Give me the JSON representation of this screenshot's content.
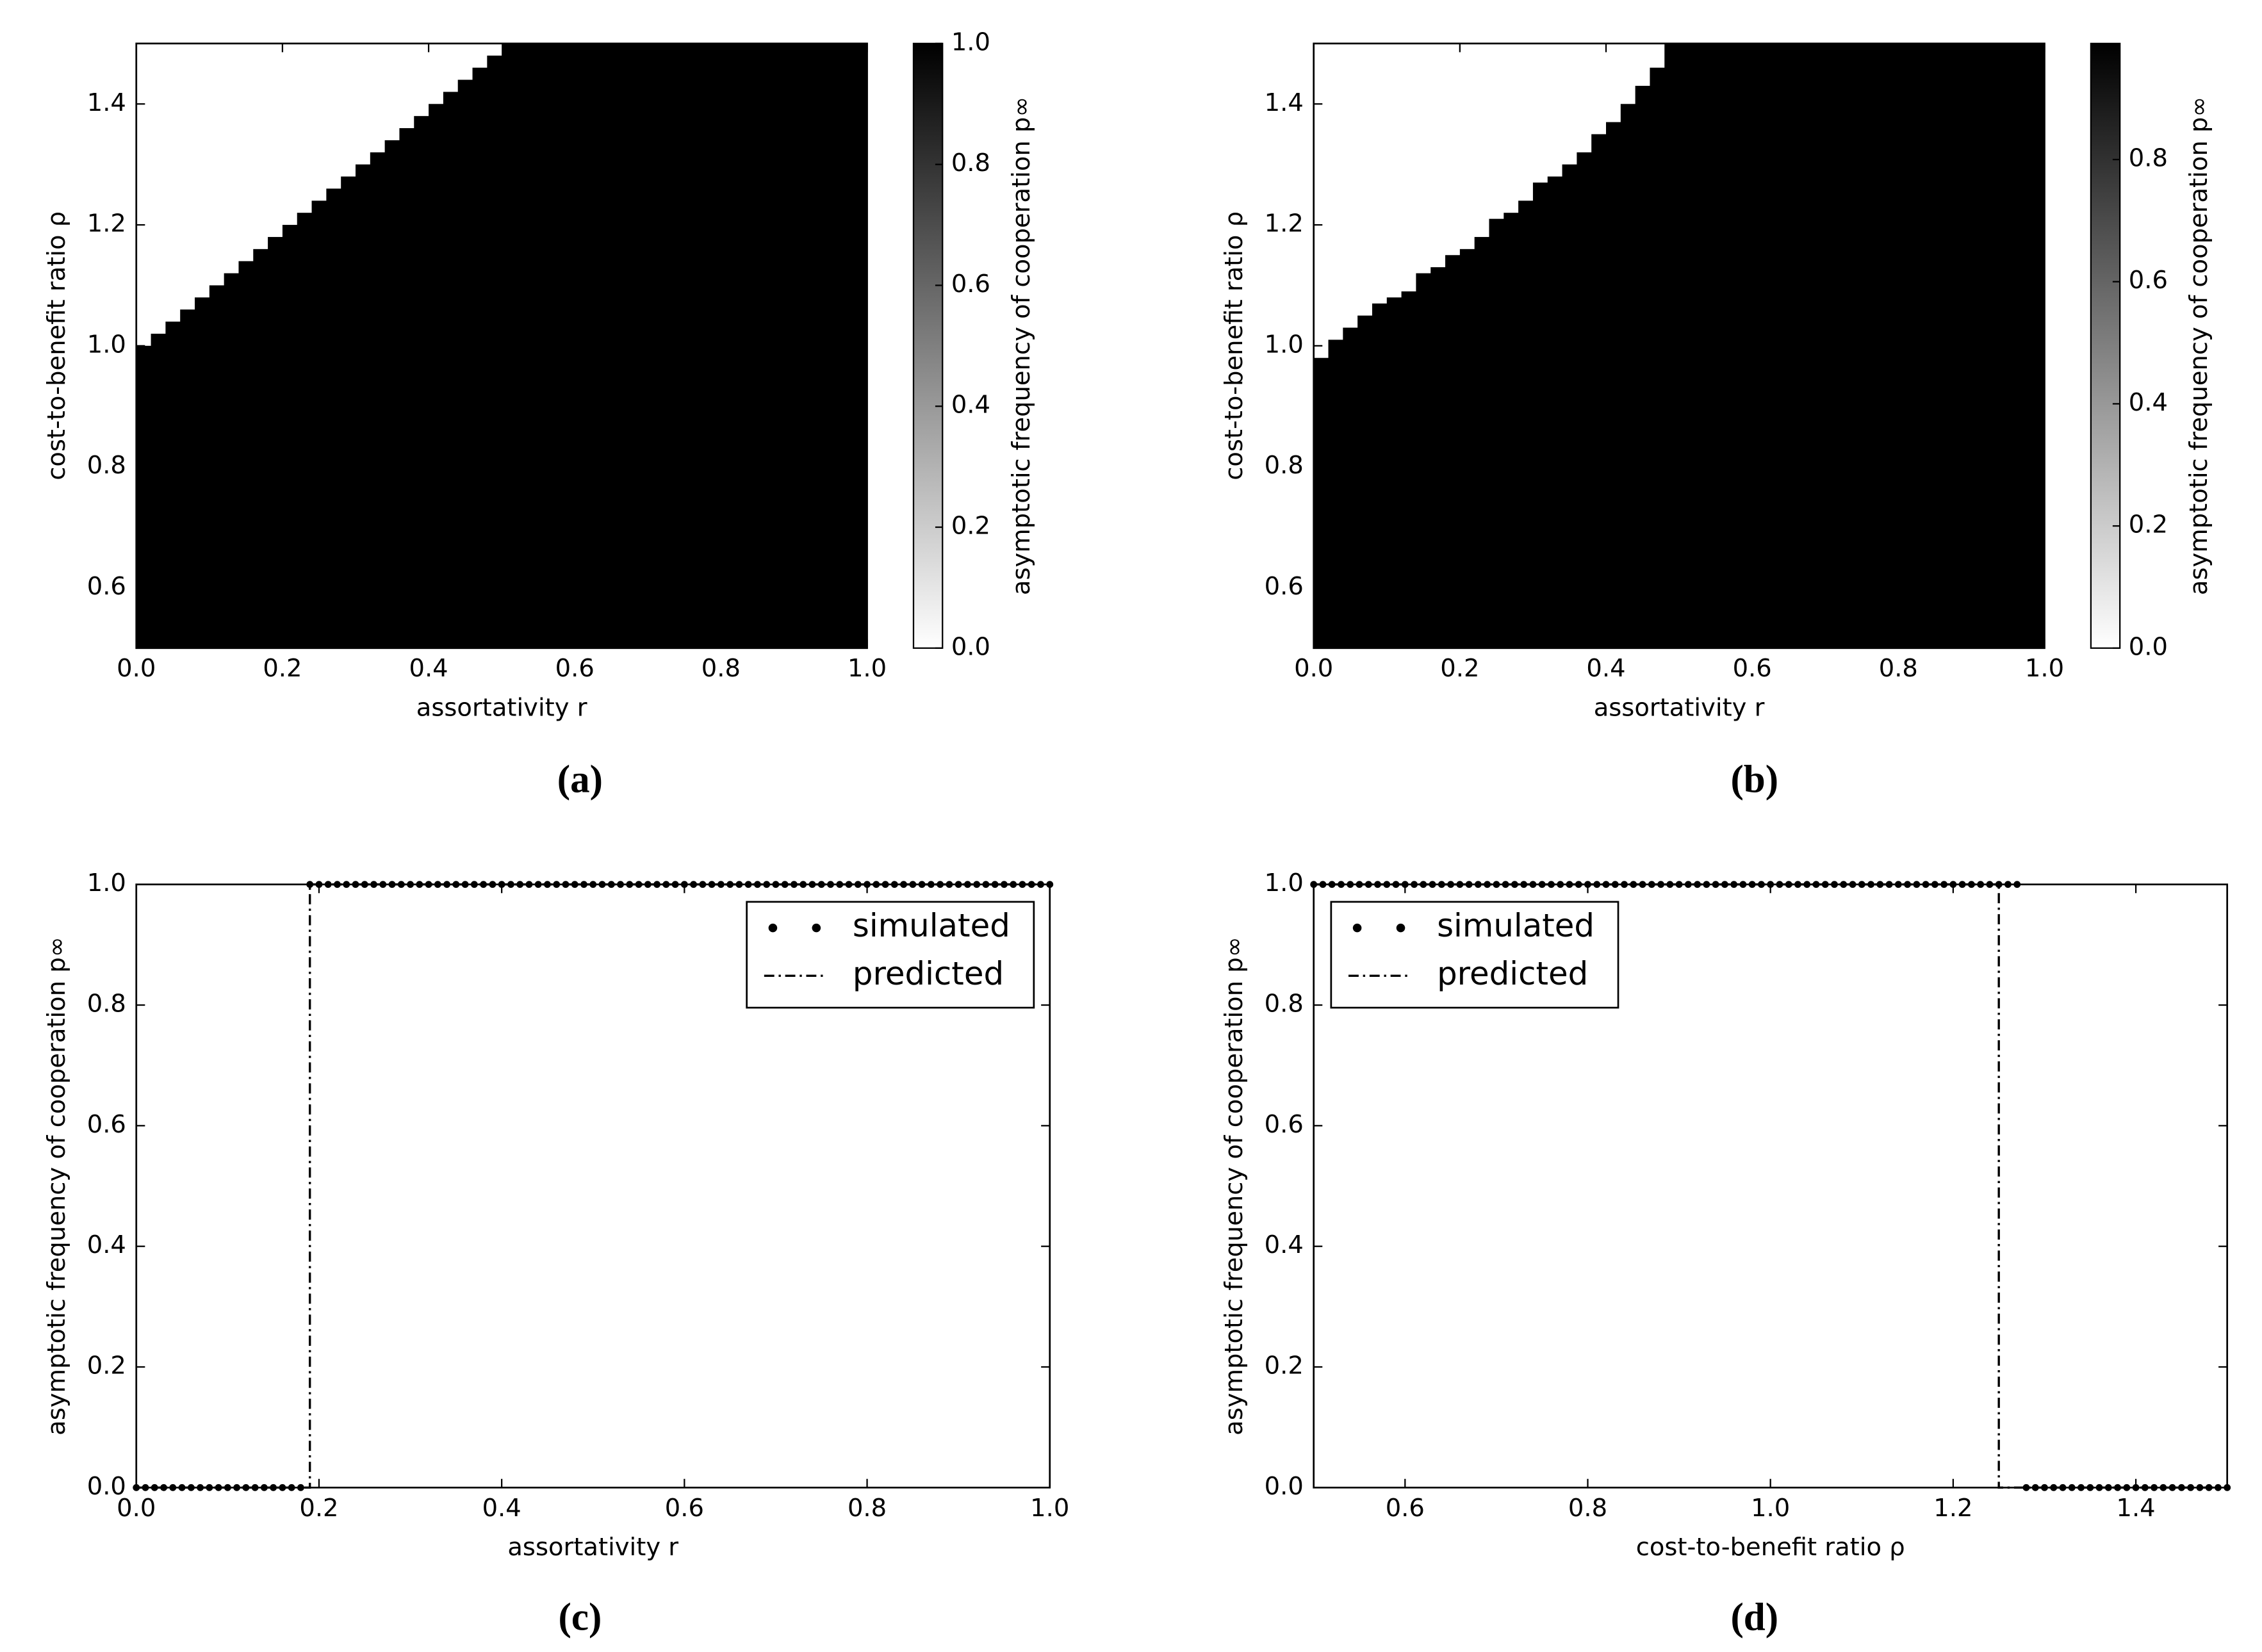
{
  "chart_data": [
    {
      "type": "heatmap",
      "caption": "(a)",
      "xlabel": "assortativity r",
      "ylabel": "cost-to-benefit ratio ρ",
      "xlim": [
        0,
        1
      ],
      "ylim": [
        0.5,
        1.5
      ],
      "xticks": [
        {
          "value": 0,
          "label": "0.0"
        },
        0.2,
        0.4,
        0.6,
        0.8,
        {
          "value": 1,
          "label": "1.0"
        }
      ],
      "yticks": [
        0.6,
        0.8,
        {
          "value": 1,
          "label": "1.0"
        },
        1.2,
        1.4
      ],
      "x": [
        0,
        0.02,
        0.04,
        0.06,
        0.08,
        0.1,
        0.12,
        0.14,
        0.16,
        0.18,
        0.2,
        0.22,
        0.24,
        0.26,
        0.28,
        0.3,
        0.32,
        0.34,
        0.36,
        0.38,
        0.4,
        0.42,
        0.44,
        0.46,
        0.48,
        0.5,
        0.52,
        0.54,
        0.56,
        0.58,
        0.6,
        0.62,
        0.64,
        0.66,
        0.68,
        0.7,
        0.72,
        0.74,
        0.76,
        0.78,
        0.8,
        0.82,
        0.84,
        0.86,
        0.88,
        0.9,
        0.92,
        0.94,
        0.96,
        0.98
      ],
      "values": [
        1,
        1.02,
        1.04,
        1.06,
        1.08,
        1.1,
        1.12,
        1.14,
        1.16,
        1.18,
        1.2,
        1.22,
        1.24,
        1.26,
        1.28,
        1.3,
        1.32,
        1.34,
        1.36,
        1.38,
        1.4,
        1.42,
        1.44,
        1.46,
        1.48,
        1.5,
        1.5,
        1.5,
        1.5,
        1.5,
        1.5,
        1.5,
        1.5,
        1.5,
        1.5,
        1.5,
        1.5,
        1.5,
        1.5,
        1.5,
        1.5,
        1.5,
        1.5,
        1.5,
        1.5,
        1.5,
        1.5,
        1.5,
        1.5,
        1.5
      ],
      "colors": [
        "#ffffff",
        "#000000"
      ],
      "colorbar": {
        "label": "asymptotic frequency of cooperation p∞",
        "ylim": [
          0,
          1
        ],
        "ticks": [
          {
            "value": 0,
            "label": "0.0"
          },
          0.2,
          0.4,
          0.6,
          0.8,
          {
            "value": 1,
            "label": "1.0"
          }
        ]
      }
    },
    {
      "type": "heatmap",
      "caption": "(b)",
      "xlabel": "assortativity r",
      "ylabel": "cost-to-benefit ratio ρ",
      "xlim": [
        0,
        1
      ],
      "ylim": [
        0.5,
        1.5
      ],
      "xticks": [
        {
          "value": 0,
          "label": "0.0"
        },
        0.2,
        0.4,
        0.6,
        0.8,
        {
          "value": 1,
          "label": "1.0"
        }
      ],
      "yticks": [
        0.6,
        0.8,
        {
          "value": 1,
          "label": "1.0"
        },
        1.2,
        1.4
      ],
      "x": [
        0,
        0.02,
        0.04,
        0.06,
        0.08,
        0.1,
        0.12,
        0.14,
        0.16,
        0.18,
        0.2,
        0.22,
        0.24,
        0.26,
        0.28,
        0.3,
        0.32,
        0.34,
        0.36,
        0.38,
        0.4,
        0.42,
        0.44,
        0.46,
        0.48,
        0.5,
        0.52,
        0.54,
        0.56,
        0.58,
        0.6,
        0.62,
        0.64,
        0.66,
        0.68,
        0.7,
        0.72,
        0.74,
        0.76,
        0.78,
        0.8,
        0.82,
        0.84,
        0.86,
        0.88,
        0.9,
        0.92,
        0.94,
        0.96,
        0.98
      ],
      "values": [
        0.98,
        1.01,
        1.03,
        1.05,
        1.07,
        1.08,
        1.09,
        1.12,
        1.13,
        1.15,
        1.16,
        1.18,
        1.21,
        1.22,
        1.24,
        1.27,
        1.28,
        1.3,
        1.32,
        1.35,
        1.37,
        1.4,
        1.43,
        1.46,
        1.5,
        1.5,
        1.5,
        1.5,
        1.5,
        1.5,
        1.5,
        1.5,
        1.5,
        1.5,
        1.5,
        1.5,
        1.5,
        1.5,
        1.5,
        1.5,
        1.5,
        1.5,
        1.5,
        1.5,
        1.5,
        1.5,
        1.5,
        1.5,
        1.5,
        1.5
      ],
      "colors": [
        "#ffffff",
        "#000000"
      ],
      "colorbar": {
        "label": "asymptotic frequency of cooperation p∞",
        "ylim": [
          0,
          0.99
        ],
        "ticks": [
          {
            "value": 0,
            "label": "0.0"
          },
          0.2,
          0.4,
          0.6,
          0.8
        ]
      }
    },
    {
      "type": "line",
      "caption": "(c)",
      "xlabel": "assortativity r",
      "ylabel": "asymptotic frequency of cooperation p∞",
      "xlim": [
        0,
        1
      ],
      "ylim": [
        0,
        1
      ],
      "xticks": [
        {
          "value": 0,
          "label": "0.0"
        },
        0.2,
        0.4,
        0.6,
        0.8,
        {
          "value": 1,
          "label": "1.0"
        }
      ],
      "yticks": [
        {
          "value": 0,
          "label": "0.0"
        },
        0.2,
        0.4,
        0.6,
        0.8,
        {
          "value": 1,
          "label": "1.0"
        }
      ],
      "legend": "upper right",
      "series": [
        {
          "name": "simulated",
          "style": "dots",
          "color": "#000000",
          "x": [
            0,
            0.01,
            0.02,
            0.03,
            0.04,
            0.05,
            0.06,
            0.07,
            0.08,
            0.09,
            0.1,
            0.11,
            0.12,
            0.13,
            0.14,
            0.15,
            0.16,
            0.17,
            0.18,
            0.19,
            0.2,
            0.21,
            0.22,
            0.23,
            0.24,
            0.25,
            0.26,
            0.27,
            0.28,
            0.29,
            0.3,
            0.31,
            0.32,
            0.33,
            0.34,
            0.35,
            0.36,
            0.37,
            0.38,
            0.39,
            0.4,
            0.41,
            0.42,
            0.43,
            0.44,
            0.45,
            0.46,
            0.47,
            0.48,
            0.49,
            0.5,
            0.51,
            0.52,
            0.53,
            0.54,
            0.55,
            0.56,
            0.57,
            0.58,
            0.59,
            0.6,
            0.61,
            0.62,
            0.63,
            0.64,
            0.65,
            0.66,
            0.67,
            0.68,
            0.69,
            0.7,
            0.71,
            0.72,
            0.73,
            0.74,
            0.75,
            0.76,
            0.77,
            0.78,
            0.79,
            0.8,
            0.81,
            0.82,
            0.83,
            0.84,
            0.85,
            0.86,
            0.87,
            0.88,
            0.89,
            0.9,
            0.91,
            0.92,
            0.93,
            0.94,
            0.95,
            0.96,
            0.97,
            0.98,
            0.99,
            1
          ],
          "values": [
            0,
            0,
            0,
            0,
            0,
            0,
            0,
            0,
            0,
            0,
            0,
            0,
            0,
            0,
            0,
            0,
            0,
            0,
            0,
            1,
            1,
            1,
            1,
            1,
            1,
            1,
            1,
            1,
            1,
            1,
            1,
            1,
            1,
            1,
            1,
            1,
            1,
            1,
            1,
            1,
            1,
            1,
            1,
            1,
            1,
            1,
            1,
            1,
            1,
            1,
            1,
            1,
            1,
            1,
            1,
            1,
            1,
            1,
            1,
            1,
            1,
            1,
            1,
            1,
            1,
            1,
            1,
            1,
            1,
            1,
            1,
            1,
            1,
            1,
            1,
            1,
            1,
            1,
            1,
            1,
            1,
            1,
            1,
            1,
            1,
            1,
            1,
            1,
            1,
            1,
            1,
            1,
            1,
            1,
            1,
            1,
            1,
            1,
            1,
            1,
            1
          ]
        },
        {
          "name": "predicted",
          "style": "dashdot",
          "color": "#000000",
          "x": [
            0,
            0.19,
            0.19,
            1
          ],
          "values": [
            0,
            0,
            1,
            1
          ]
        }
      ]
    },
    {
      "type": "line",
      "caption": "(d)",
      "xlabel": "cost-to-benefit ratio ρ",
      "ylabel": "asymptotic frequency of cooperation p∞",
      "xlim": [
        0.5,
        1.5
      ],
      "ylim": [
        0,
        1
      ],
      "xticks": [
        0.6,
        0.8,
        {
          "value": 1,
          "label": "1.0"
        },
        1.2,
        1.4
      ],
      "yticks": [
        {
          "value": 0,
          "label": "0.0"
        },
        0.2,
        0.4,
        0.6,
        0.8,
        {
          "value": 1,
          "label": "1.0"
        }
      ],
      "legend": "upper left",
      "series": [
        {
          "name": "simulated",
          "style": "dots",
          "color": "#000000",
          "x": [
            0.5,
            0.51,
            0.52,
            0.53,
            0.54,
            0.55,
            0.56,
            0.57,
            0.58,
            0.59,
            0.6,
            0.61,
            0.62,
            0.63,
            0.64,
            0.65,
            0.66,
            0.67,
            0.68,
            0.69,
            0.7,
            0.71,
            0.72,
            0.73,
            0.74,
            0.75,
            0.76,
            0.77,
            0.78,
            0.79,
            0.8,
            0.81,
            0.82,
            0.83,
            0.84,
            0.85,
            0.86,
            0.87,
            0.88,
            0.89,
            0.9,
            0.91,
            0.92,
            0.93,
            0.94,
            0.95,
            0.96,
            0.97,
            0.98,
            0.99,
            1,
            1.01,
            1.02,
            1.03,
            1.04,
            1.05,
            1.06,
            1.07,
            1.08,
            1.09,
            1.1,
            1.11,
            1.12,
            1.13,
            1.14,
            1.15,
            1.16,
            1.17,
            1.18,
            1.19,
            1.2,
            1.21,
            1.22,
            1.23,
            1.24,
            1.25,
            1.26,
            1.27,
            1.28,
            1.29,
            1.3,
            1.31,
            1.32,
            1.33,
            1.34,
            1.35,
            1.36,
            1.37,
            1.38,
            1.39,
            1.4,
            1.41,
            1.42,
            1.43,
            1.44,
            1.45,
            1.46,
            1.47,
            1.48,
            1.49,
            1.5
          ],
          "values": [
            1,
            1,
            1,
            1,
            1,
            1,
            1,
            1,
            1,
            1,
            1,
            1,
            1,
            1,
            1,
            1,
            1,
            1,
            1,
            1,
            1,
            1,
            1,
            1,
            1,
            1,
            1,
            1,
            1,
            1,
            1,
            1,
            1,
            1,
            1,
            1,
            1,
            1,
            1,
            1,
            1,
            1,
            1,
            1,
            1,
            1,
            1,
            1,
            1,
            1,
            1,
            1,
            1,
            1,
            1,
            1,
            1,
            1,
            1,
            1,
            1,
            1,
            1,
            1,
            1,
            1,
            1,
            1,
            1,
            1,
            1,
            1,
            1,
            1,
            1,
            1,
            1,
            1,
            0,
            0,
            0,
            0,
            0,
            0,
            0,
            0,
            0,
            0,
            0,
            0,
            0,
            0,
            0,
            0,
            0,
            0,
            0,
            0,
            0,
            0,
            0
          ]
        },
        {
          "name": "predicted",
          "style": "dashdot",
          "color": "#000000",
          "x": [
            0.5,
            1.25,
            1.25,
            1.5
          ],
          "values": [
            1,
            1,
            0,
            0
          ]
        }
      ]
    }
  ]
}
